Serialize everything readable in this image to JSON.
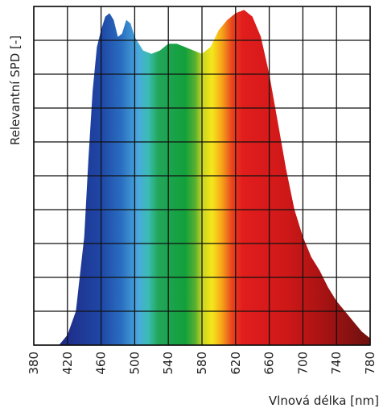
{
  "chart_data": {
    "type": "area",
    "title": "",
    "xlabel": "Vlnová délka [nm]",
    "ylabel": "Relevantní SPD [-]",
    "xlim": [
      380,
      780
    ],
    "ylim": [
      0,
      1
    ],
    "grid": true,
    "y_ticks_labeled": false,
    "fill": "visible-spectrum wavelength colors",
    "x_ticks": [
      380,
      420,
      460,
      500,
      540,
      580,
      620,
      660,
      700,
      740,
      780
    ],
    "x_tick_labels": [
      "380",
      "420",
      "460",
      "500",
      "540",
      "580",
      "620",
      "660",
      "700",
      "740",
      "780"
    ],
    "series": [
      {
        "x": [
          380,
          410,
          420,
          430,
          440,
          445,
          450,
          455,
          460,
          465,
          470,
          475,
          480,
          485,
          490,
          495,
          500,
          505,
          510,
          520,
          530,
          540,
          550,
          560,
          570,
          580,
          590,
          600,
          610,
          620,
          630,
          640,
          650,
          660,
          670,
          680,
          690,
          700,
          710,
          720,
          730,
          740,
          750,
          760,
          770,
          780
        ],
        "y": [
          0,
          0.0,
          0.03,
          0.1,
          0.32,
          0.55,
          0.75,
          0.88,
          0.93,
          0.97,
          0.98,
          0.96,
          0.91,
          0.92,
          0.96,
          0.95,
          0.91,
          0.89,
          0.87,
          0.86,
          0.87,
          0.89,
          0.89,
          0.88,
          0.87,
          0.86,
          0.88,
          0.93,
          0.96,
          0.98,
          0.99,
          0.97,
          0.91,
          0.8,
          0.66,
          0.52,
          0.4,
          0.32,
          0.26,
          0.22,
          0.17,
          0.13,
          0.1,
          0.07,
          0.04,
          0.02
        ]
      }
    ]
  }
}
